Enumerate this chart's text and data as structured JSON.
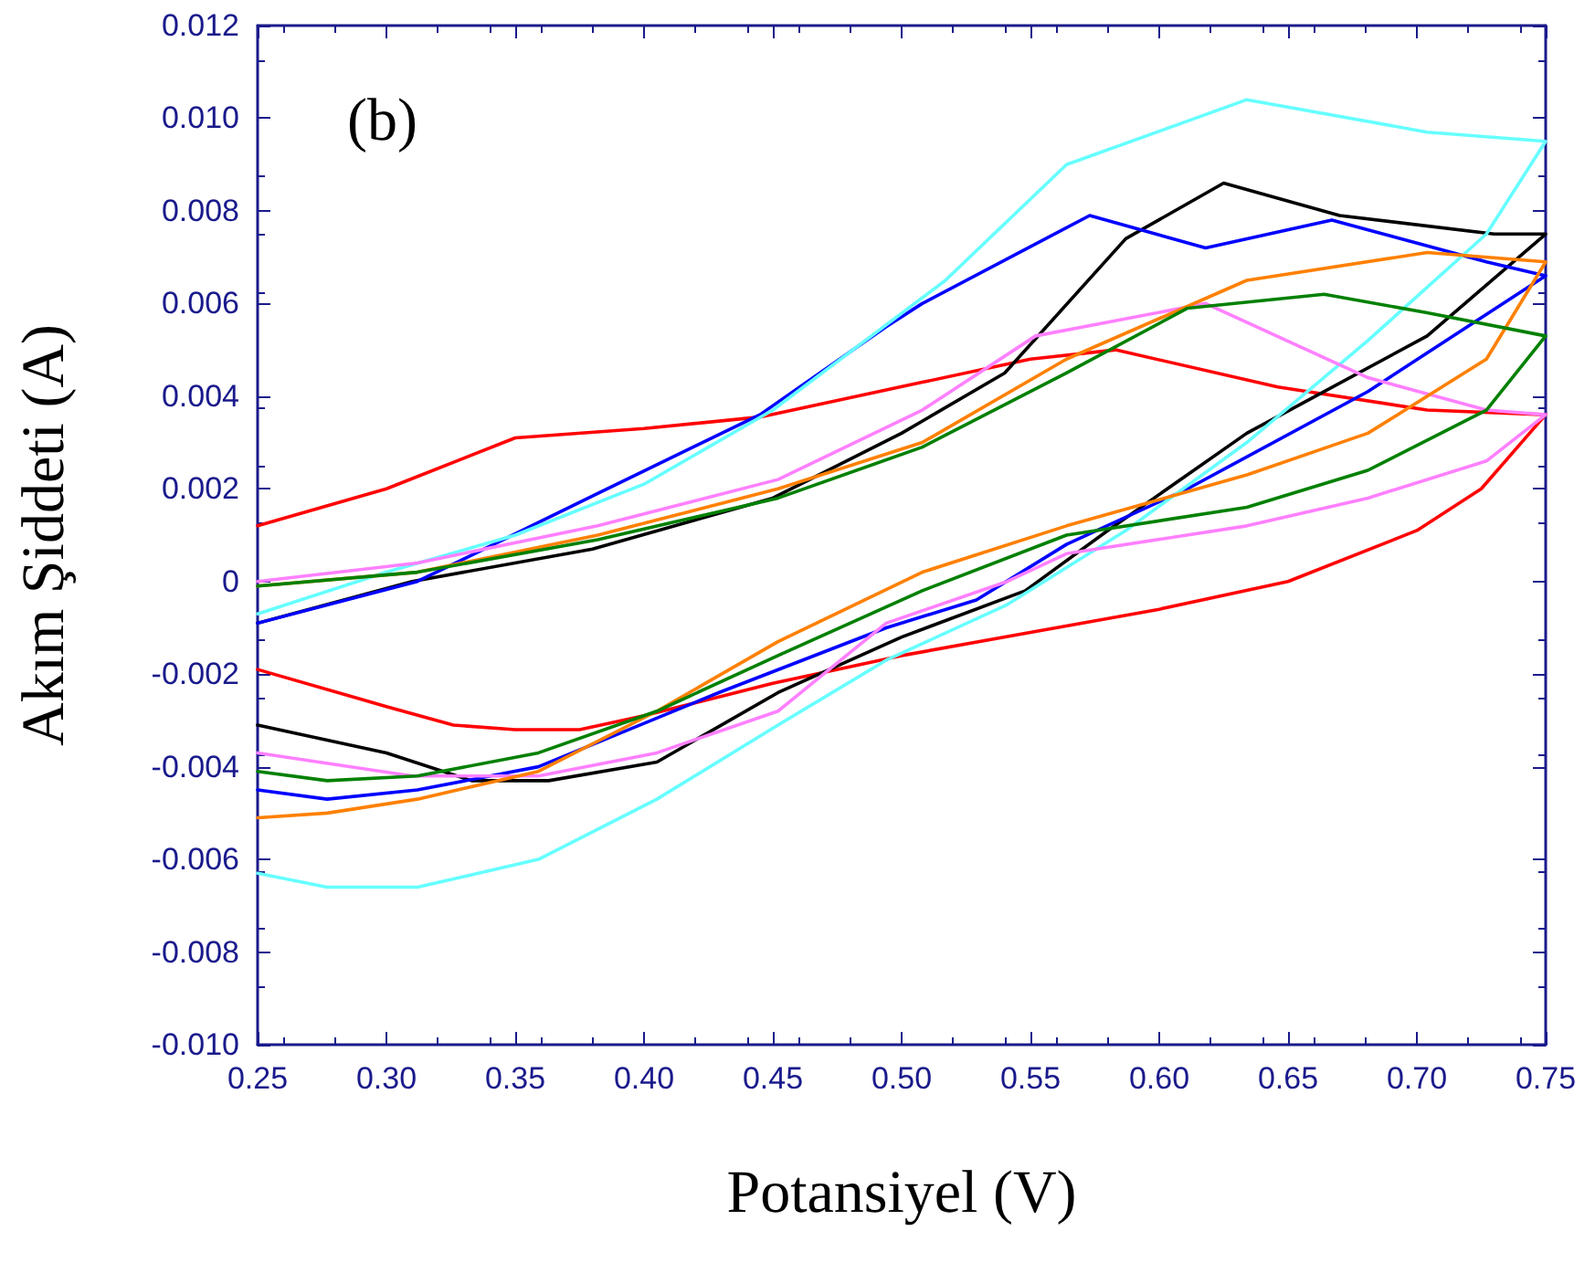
{
  "chart_data": {
    "type": "line",
    "xlabel": "Potansiyel (V)",
    "ylabel": "Akım Şiddeti (A)",
    "annotations": [
      "(b)"
    ],
    "xlim": [
      0.25,
      0.75
    ],
    "xticks": [
      {
        "value": 0.25,
        "label": "0.25"
      },
      {
        "value": 0.3,
        "label": "0.30"
      },
      {
        "value": 0.35,
        "label": "0.35"
      },
      {
        "value": 0.4,
        "label": "0.40"
      },
      {
        "value": 0.45,
        "label": "0.45"
      },
      {
        "value": 0.5,
        "label": "0.50"
      },
      {
        "value": 0.55,
        "label": "0.55"
      },
      {
        "value": 0.6,
        "label": "0.60"
      },
      {
        "value": 0.65,
        "label": "0.65"
      },
      {
        "value": 0.7,
        "label": "0.70"
      },
      {
        "value": 0.75,
        "label": "0.75"
      }
    ],
    "ylim": [
      -0.01,
      0.012
    ],
    "yticks": [
      {
        "value": -0.01,
        "label": "-0.010"
      },
      {
        "value": -0.008,
        "label": "-0.008"
      },
      {
        "value": -0.006,
        "label": "-0.006"
      },
      {
        "value": -0.004,
        "label": "-0.004"
      },
      {
        "value": -0.002,
        "label": "-0.002"
      },
      0,
      {
        "value": 0.002,
        "label": "0.002"
      },
      {
        "value": 0.004,
        "label": "0.004"
      },
      {
        "value": 0.006,
        "label": "0.006"
      },
      {
        "value": 0.008,
        "label": "0.008"
      },
      {
        "value": 0.01,
        "label": "0.010"
      },
      {
        "value": 0.012,
        "label": "0.012"
      }
    ],
    "grid": false,
    "marker": "none",
    "line_style": "solid",
    "series": [
      {
        "color": "#ff0000",
        "x": [
          0.25,
          0.3,
          0.35,
          0.4,
          0.445,
          0.508,
          0.55,
          0.583,
          0.646,
          0.704,
          0.75,
          0.725,
          0.7,
          0.65,
          0.6,
          0.55,
          0.5,
          0.45,
          0.4,
          0.375,
          0.35,
          0.326,
          0.3,
          0.25
        ],
        "values": [
          0.0012,
          0.002,
          0.0031,
          0.0033,
          0.00355,
          0.0043,
          0.0048,
          0.005,
          0.0042,
          0.0037,
          0.0036,
          0.002,
          0.0011,
          0.0,
          -0.0006,
          -0.0011,
          -0.0016,
          -0.0022,
          -0.0029,
          -0.0032,
          -0.0032,
          -0.0031,
          -0.0027,
          -0.0019
        ]
      },
      {
        "color": "#000000",
        "x": [
          0.25,
          0.31,
          0.38,
          0.45,
          0.5,
          0.54,
          0.587,
          0.625,
          0.67,
          0.73,
          0.75,
          0.704,
          0.634,
          0.58,
          0.548,
          0.5,
          0.452,
          0.405,
          0.363,
          0.333,
          0.3,
          0.25
        ],
        "values": [
          -0.0009,
          0.0,
          0.0007,
          0.0018,
          0.0032,
          0.0045,
          0.0074,
          0.0086,
          0.0079,
          0.0075,
          0.0075,
          0.0053,
          0.0032,
          0.0011,
          -0.0002,
          -0.0012,
          -0.0024,
          -0.0039,
          -0.0043,
          -0.0043,
          -0.0037,
          -0.0031
        ]
      },
      {
        "color": "#0000ff",
        "x": [
          0.25,
          0.312,
          0.338,
          0.382,
          0.445,
          0.494,
          0.508,
          0.573,
          0.618,
          0.667,
          0.727,
          0.75,
          0.681,
          0.611,
          0.564,
          0.529,
          0.494,
          0.429,
          0.359,
          0.312,
          0.277,
          0.25
        ],
        "values": [
          -0.0009,
          0.0,
          0.0007,
          0.0019,
          0.0036,
          0.0055,
          0.006,
          0.0079,
          0.0072,
          0.0078,
          0.0069,
          0.0066,
          0.0041,
          0.002,
          0.0008,
          -0.0004,
          -0.001,
          -0.0024,
          -0.004,
          -0.0045,
          -0.0047,
          -0.0045
        ]
      },
      {
        "color": "#66ffff",
        "x": [
          0.25,
          0.3,
          0.35,
          0.4,
          0.45,
          0.517,
          0.564,
          0.634,
          0.704,
          0.75,
          0.727,
          0.681,
          0.634,
          0.587,
          0.541,
          0.494,
          0.452,
          0.405,
          0.359,
          0.312,
          0.277,
          0.25
        ],
        "values": [
          -0.0007,
          0.0002,
          0.001,
          0.0021,
          0.0037,
          0.0065,
          0.009,
          0.0104,
          0.0097,
          0.0095,
          0.0075,
          0.0052,
          0.003,
          0.0011,
          -0.0005,
          -0.0017,
          -0.0031,
          -0.0047,
          -0.006,
          -0.0066,
          -0.0066,
          -0.0063
        ]
      },
      {
        "color": "#ff80ff",
        "x": [
          0.25,
          0.312,
          0.382,
          0.452,
          0.508,
          0.552,
          0.618,
          0.681,
          0.727,
          0.75,
          0.727,
          0.681,
          0.634,
          0.564,
          0.541,
          0.494,
          0.452,
          0.405,
          0.359,
          0.31,
          0.25
        ],
        "values": [
          0.0,
          0.0004,
          0.0012,
          0.0022,
          0.0037,
          0.0053,
          0.006,
          0.0044,
          0.0037,
          0.0036,
          0.0026,
          0.0018,
          0.0012,
          0.0006,
          0.0,
          -0.0009,
          -0.0028,
          -0.0037,
          -0.0042,
          -0.0042,
          -0.0037
        ]
      },
      {
        "color": "#ff8000",
        "x": [
          0.25,
          0.312,
          0.382,
          0.452,
          0.508,
          0.564,
          0.634,
          0.704,
          0.75,
          0.727,
          0.681,
          0.634,
          0.564,
          0.508,
          0.452,
          0.405,
          0.359,
          0.312,
          0.277,
          0.25
        ],
        "values": [
          -0.0001,
          0.0002,
          0.001,
          0.002,
          0.003,
          0.0048,
          0.0065,
          0.0071,
          0.0069,
          0.0048,
          0.0032,
          0.0023,
          0.0012,
          0.0002,
          -0.0013,
          -0.0028,
          -0.0041,
          -0.0047,
          -0.005,
          -0.0051
        ]
      },
      {
        "color": "#008000",
        "x": [
          0.25,
          0.312,
          0.382,
          0.452,
          0.508,
          0.564,
          0.611,
          0.664,
          0.704,
          0.75,
          0.727,
          0.681,
          0.634,
          0.564,
          0.508,
          0.452,
          0.405,
          0.359,
          0.312,
          0.277,
          0.25
        ],
        "values": [
          -0.0001,
          0.0002,
          0.0009,
          0.0018,
          0.0029,
          0.0045,
          0.0059,
          0.0062,
          0.0058,
          0.0053,
          0.0037,
          0.0024,
          0.0016,
          0.001,
          -0.0002,
          -0.0016,
          -0.0028,
          -0.0037,
          -0.0042,
          -0.0043,
          -0.0041
        ]
      }
    ]
  }
}
